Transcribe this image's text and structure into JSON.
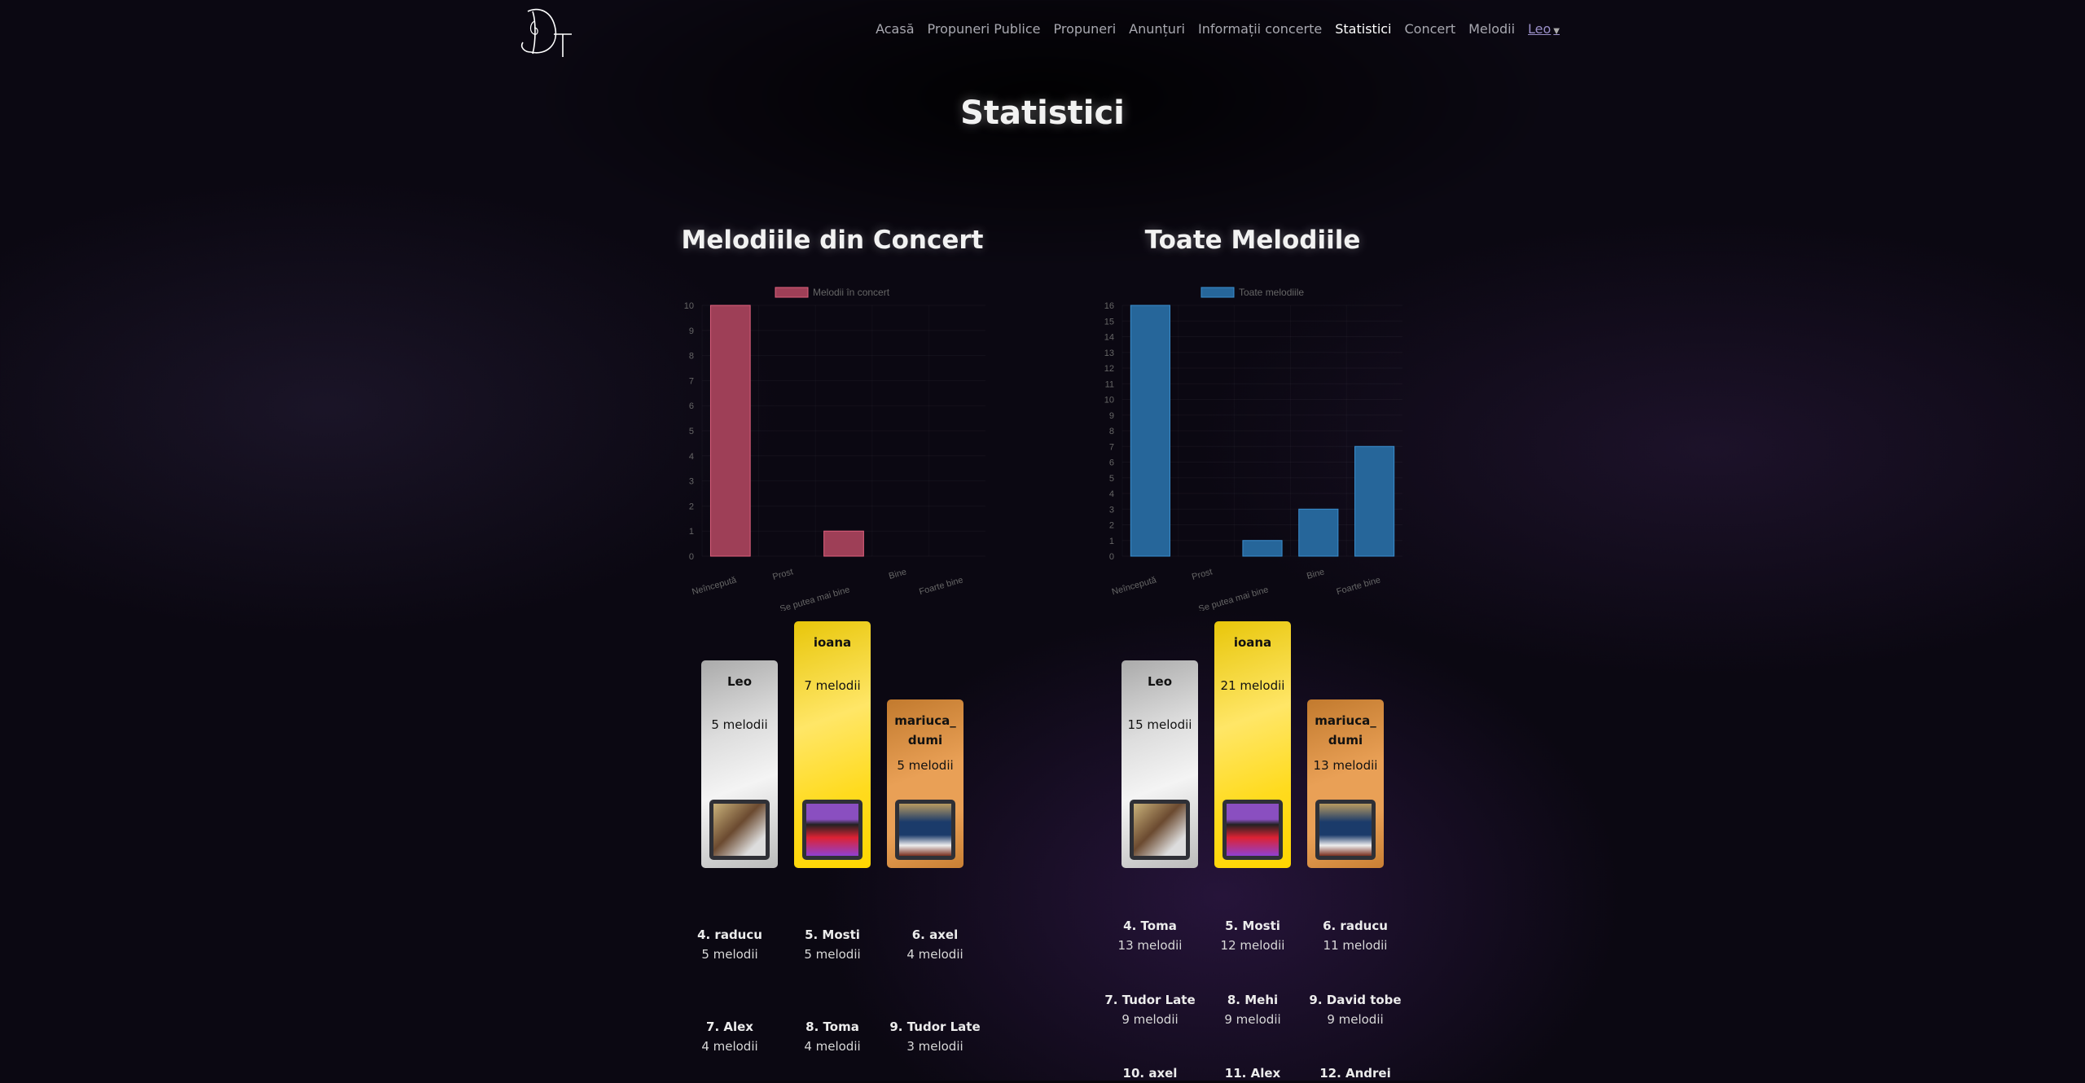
{
  "logo_text": "DT",
  "nav": {
    "items": [
      "Acasă",
      "Propuneri Publice",
      "Propuneri",
      "Anunțuri",
      "Informații concerte",
      "Statistici",
      "Concert",
      "Melodii"
    ],
    "active": "Statistici",
    "user": "Leo"
  },
  "page_title": "Statistici",
  "sections": [
    {
      "title": "Melodiile din Concert",
      "podium": [
        {
          "place": 2,
          "name": "Leo",
          "count": "5 melodii"
        },
        {
          "place": 1,
          "name": "ioana",
          "count": "7 melodii"
        },
        {
          "place": 3,
          "name": "mariuca_dumi",
          "count": "5 melodii"
        }
      ],
      "ranking": [
        {
          "name": "4. raducu",
          "count": "5 melodii"
        },
        {
          "name": "5. Mosti",
          "count": "5 melodii"
        },
        {
          "name": "6. axel",
          "count": "4 melodii"
        },
        {
          "name": "7. Alex",
          "count": "4 melodii"
        },
        {
          "name": "8. Toma",
          "count": "4 melodii"
        },
        {
          "name": "9. Tudor Late",
          "count": "3 melodii"
        }
      ]
    },
    {
      "title": "Toate Melodiile",
      "podium": [
        {
          "place": 2,
          "name": "Leo",
          "count": "15 melodii"
        },
        {
          "place": 1,
          "name": "ioana",
          "count": "21 melodii"
        },
        {
          "place": 3,
          "name": "mariuca_dumi",
          "count": "13 melodii"
        }
      ],
      "ranking": [
        {
          "name": "4. Toma",
          "count": "13 melodii"
        },
        {
          "name": "5. Mosti",
          "count": "12 melodii"
        },
        {
          "name": "6. raducu",
          "count": "11 melodii"
        },
        {
          "name": "7. Tudor Late",
          "count": "9 melodii"
        },
        {
          "name": "8. Mehi",
          "count": "9 melodii"
        },
        {
          "name": "9. David tobe",
          "count": "9 melodii"
        },
        {
          "name": "10. axel",
          "count": ""
        },
        {
          "name": "11. Alex",
          "count": ""
        },
        {
          "name": "12. Andrei",
          "count": ""
        }
      ]
    }
  ],
  "chart_data": [
    {
      "type": "bar",
      "title": "",
      "categories": [
        "Neîncepută",
        "Prost",
        "Se putea mai bine",
        "Bine",
        "Foarte bine"
      ],
      "series": [
        {
          "name": "Melodii în concert",
          "values": [
            10,
            0,
            1,
            0,
            0
          ],
          "color": "#9e3f57",
          "border": "#e0607e"
        }
      ],
      "ylim": [
        0,
        10
      ],
      "yticks": [
        0,
        1,
        2,
        3,
        4,
        5,
        6,
        7,
        8,
        9,
        10
      ],
      "legend": "top"
    },
    {
      "type": "bar",
      "title": "",
      "categories": [
        "Neîncepută",
        "Prost",
        "Se putea mai bine",
        "Bine",
        "Foarte bine"
      ],
      "series": [
        {
          "name": "Toate melodiile",
          "values": [
            16,
            0,
            1,
            3,
            7
          ],
          "color": "#26669a",
          "border": "#3a8fd0"
        }
      ],
      "ylim": [
        0,
        16
      ],
      "yticks": [
        0,
        1,
        2,
        3,
        4,
        5,
        6,
        7,
        8,
        9,
        10,
        11,
        12,
        13,
        14,
        15,
        16
      ],
      "legend": "top"
    }
  ]
}
